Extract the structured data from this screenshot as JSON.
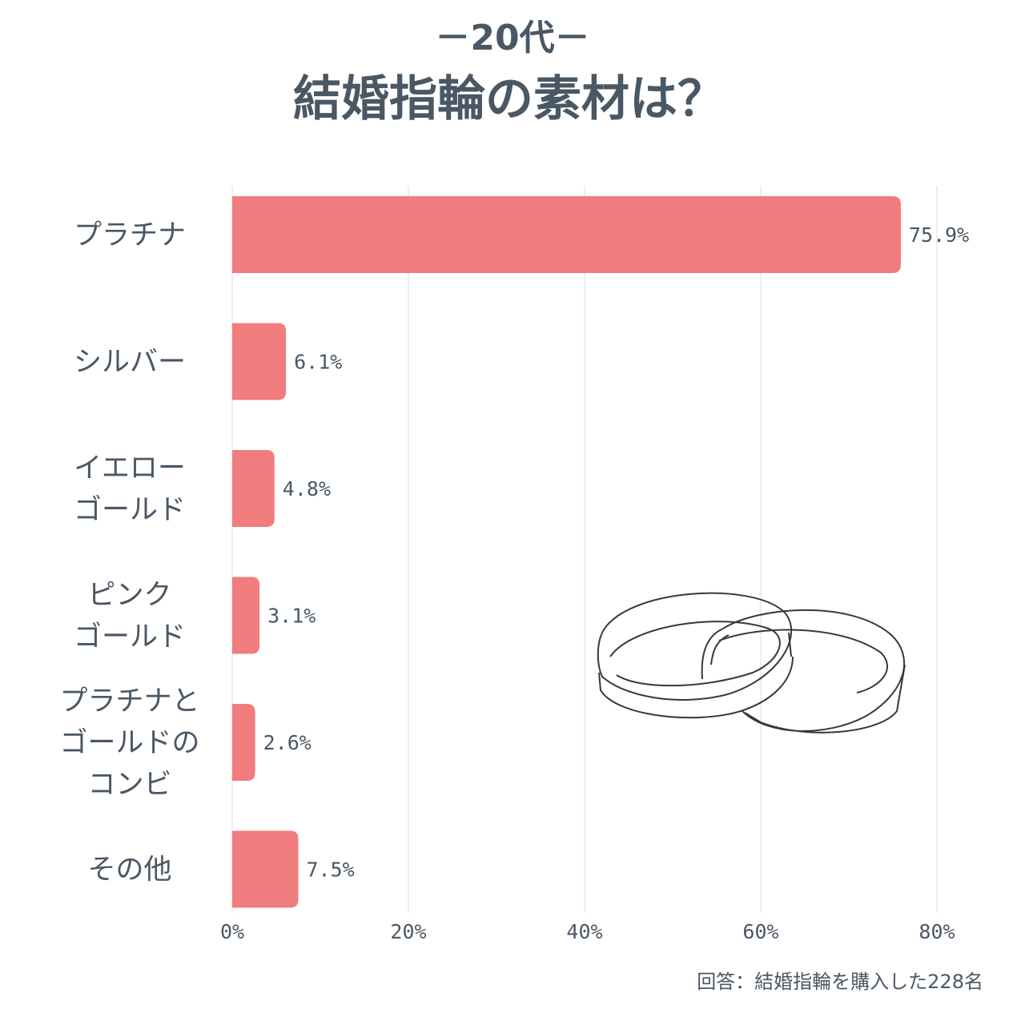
{
  "chart_data": {
    "type": "bar",
    "orientation": "horizontal",
    "subtitle": "－20代－",
    "title": "結婚指輪の素材は？",
    "categories": [
      [
        "プラチナ"
      ],
      [
        "シルバー"
      ],
      [
        "イエロー",
        "ゴールド"
      ],
      [
        "ピンク",
        "ゴールド"
      ],
      [
        "プラチナと",
        "ゴールドの",
        "コンビ"
      ],
      [
        "その他"
      ]
    ],
    "values": [
      75.9,
      6.1,
      4.8,
      3.1,
      2.6,
      7.5
    ],
    "value_labels": [
      "75.9%",
      "6.1%",
      "4.8%",
      "3.1%",
      "2.6%",
      "7.5%"
    ],
    "xlim": [
      0,
      80
    ],
    "xticks": [
      0,
      20,
      40,
      60,
      80
    ],
    "xtick_labels": [
      "0%",
      "20%",
      "40%",
      "60%",
      "80%"
    ],
    "grid": true,
    "bar_color": "#f07c7e",
    "text_color": "#4a5764",
    "footnote": "回答：結婚指輪を購入した228名",
    "decoration": "wedding-rings-illustration"
  }
}
